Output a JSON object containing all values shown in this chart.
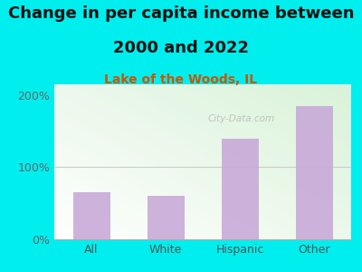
{
  "title_line1": "Change in per capita income between",
  "title_line2": "2000 and 2022",
  "subtitle": "Lake of the Woods, IL",
  "categories": [
    "All",
    "White",
    "Hispanic",
    "Other"
  ],
  "values": [
    65,
    60,
    140,
    185
  ],
  "bar_color": "#c8a8d8",
  "background_outer": "#00eeee",
  "ylim": [
    0,
    215
  ],
  "yticks": [
    0,
    100,
    200
  ],
  "ytick_labels": [
    "0%",
    "100%",
    "200%"
  ],
  "title_fontsize": 13,
  "subtitle_fontsize": 10,
  "tick_fontsize": 9,
  "title_color": "#111111",
  "subtitle_color": "#cc5500",
  "tick_color": "#666666",
  "xlabel_color": "#555555",
  "watermark": "City-Data.com"
}
